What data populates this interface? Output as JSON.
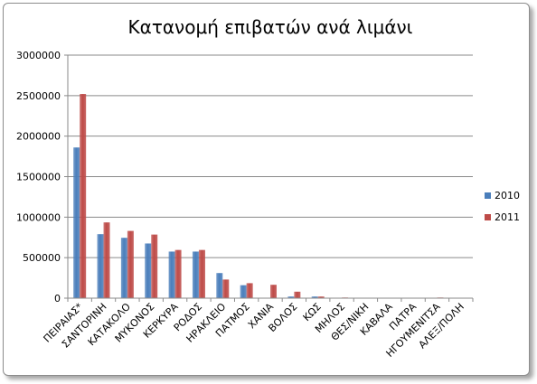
{
  "chart_data": {
    "type": "bar",
    "title": "Κατανομή επιβατών ανά λιμάνι",
    "xlabel": "",
    "ylabel": "",
    "ylim": [
      0,
      3000000
    ],
    "yticks": [
      "0",
      "500000",
      "1000000",
      "1500000",
      "2000000",
      "2500000",
      "3000000"
    ],
    "grid": true,
    "legend_position": "right",
    "categories": [
      "ΠΕΙΡΑΙΑΣ*",
      "ΣΑΝΤΟΡΙΝΗ",
      "ΚΑΤΑΚΟΛΟ",
      "ΜΥΚΟΝΟΣ",
      "ΚΕΡΚΥΡΑ",
      "ΡΟΔΟΣ",
      "ΗΡΑΚΛΕΙΟ",
      "ΠΑΤΜΟΣ",
      "ΧΑΝΙΑ",
      "ΒΟΛΟΣ",
      "ΚΩΣ",
      "ΜΗΛΟΣ",
      "ΘΕΣ/ΝΙΚΗ",
      "ΚΑΒΑΛΑ",
      "ΠΑΤΡΑ",
      "ΗΓΟΥΜΕΝΙΤΣΑ",
      "ΑΛΕΞ/ΠΟΛΗ"
    ],
    "series": [
      {
        "name": "2010",
        "color": "#4a7ebb",
        "values": [
          1860000,
          790000,
          745000,
          675000,
          575000,
          575000,
          310000,
          160000,
          0,
          20000,
          20000,
          5000,
          5000,
          5000,
          5000,
          5000,
          0
        ]
      },
      {
        "name": "2011",
        "color": "#be4b48",
        "values": [
          2520000,
          935000,
          830000,
          785000,
          595000,
          595000,
          230000,
          185000,
          165000,
          80000,
          20000,
          8000,
          5000,
          5000,
          5000,
          8000,
          5000
        ]
      }
    ]
  }
}
